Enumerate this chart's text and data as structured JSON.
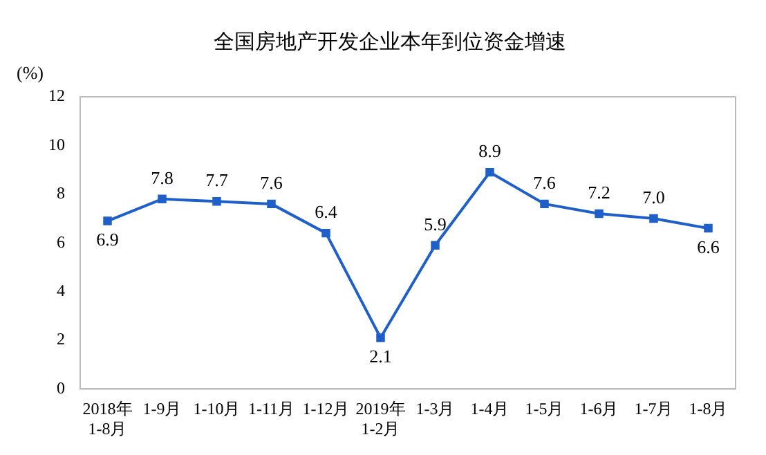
{
  "chart_data": {
    "type": "line",
    "title": "全国房地产开发企业本年到位资金增速",
    "ylabel": "(%)",
    "categories": [
      "2018年 1-8月",
      "1-9月",
      "1-10月",
      "1-11月",
      "1-12月",
      "2019年 1-2月",
      "1-3月",
      "1-4月",
      "1-5月",
      "1-6月",
      "1-7月",
      "1-8月"
    ],
    "values": [
      6.9,
      7.8,
      7.7,
      7.6,
      6.4,
      2.1,
      5.9,
      8.9,
      7.6,
      7.2,
      7.0,
      6.6
    ],
    "value_labels": [
      "6.9",
      "7.8",
      "7.7",
      "7.6",
      "6.4",
      "2.1",
      "5.9",
      "8.9",
      "7.6",
      "7.2",
      "7.0",
      "6.6"
    ],
    "color": "#1f5fc9",
    "ylim": [
      0,
      12
    ],
    "yticks": [
      0,
      2,
      4,
      6,
      8,
      10,
      12
    ],
    "grid": false,
    "legend": false,
    "marker": "square",
    "line_style": "solid"
  }
}
